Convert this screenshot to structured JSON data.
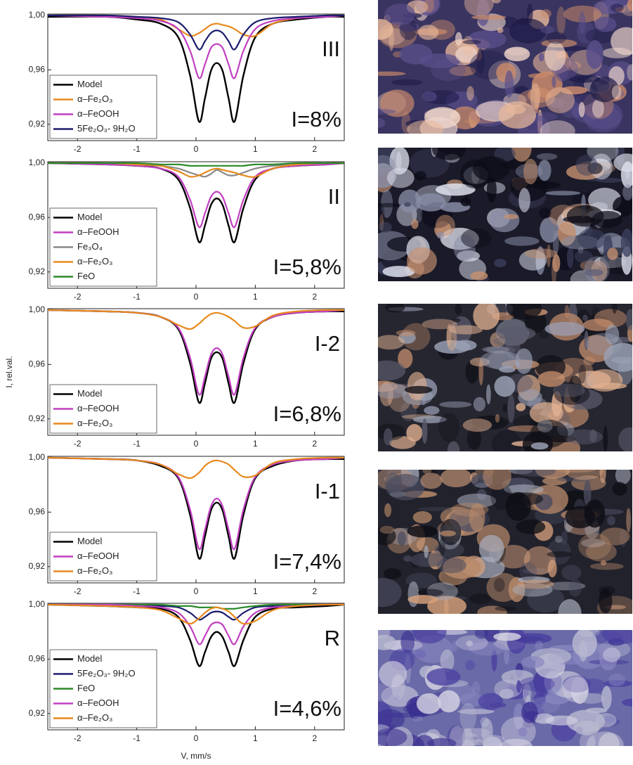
{
  "chart_data": [
    {
      "type": "line",
      "label": "III",
      "annotation": "I=8%",
      "xlim": [
        -2.5,
        2.5
      ],
      "ylim": [
        0.908,
        1.001
      ],
      "xticks": [
        -2,
        -1,
        0,
        1,
        2
      ],
      "yticks": [
        {
          "value": 0.92,
          "label": "0,92"
        },
        {
          "value": 0.96,
          "label": "0,96"
        },
        {
          "value": 1.0,
          "label": "1,00"
        }
      ],
      "legend": "lower left",
      "x": [
        -2.5,
        -1.5,
        -1,
        -0.6,
        -0.3,
        -0.1,
        0.05,
        0.15,
        0.25,
        0.35,
        0.45,
        0.55,
        0.65,
        0.8,
        1,
        1.3,
        1.7,
        2.2,
        2.5
      ],
      "series": [
        {
          "name": "Model",
          "color": "#000000",
          "values": [
            0.999,
            0.999,
            0.997,
            0.994,
            0.984,
            0.956,
            0.922,
            0.939,
            0.959,
            0.965,
            0.959,
            0.939,
            0.922,
            0.956,
            0.984,
            0.994,
            0.997,
            0.999,
            0.999
          ]
        },
        {
          "name": "α–Fe₂O₃",
          "color": "#e8891e",
          "values": [
            1,
            1,
            0.999,
            0.997,
            0.99,
            0.985,
            0.987,
            0.99,
            0.993,
            0.994,
            0.993,
            0.992,
            0.99,
            0.986,
            0.985,
            0.994,
            0.998,
            1,
            1
          ]
        },
        {
          "name": "α–FeOOH",
          "color": "#c13fc1",
          "values": [
            1,
            0.999,
            0.998,
            0.996,
            0.99,
            0.974,
            0.954,
            0.964,
            0.976,
            0.979,
            0.976,
            0.964,
            0.954,
            0.974,
            0.99,
            0.996,
            0.998,
            0.999,
            1
          ]
        },
        {
          "name": "5Fe₂O₃- 9H₂O",
          "color": "#1c1c6e",
          "values": [
            1,
            1,
            0.999,
            0.998,
            0.995,
            0.986,
            0.975,
            0.981,
            0.987,
            0.989,
            0.987,
            0.981,
            0.975,
            0.986,
            0.995,
            0.998,
            0.999,
            1,
            1
          ]
        }
      ]
    },
    {
      "type": "line",
      "label": "II",
      "annotation": "I=5,8%",
      "xlim": [
        -2.5,
        2.5
      ],
      "ylim": [
        0.908,
        1.001
      ],
      "xticks": [
        -2,
        -1,
        0,
        1,
        2
      ],
      "yticks": [
        {
          "value": 0.92,
          "label": "0,92"
        },
        {
          "value": 0.96,
          "label": "0,96"
        },
        {
          "value": 1.0,
          "label": "1,00"
        }
      ],
      "legend": "lower left",
      "x": [
        -2.5,
        -1.5,
        -1,
        -0.6,
        -0.3,
        -0.1,
        0.05,
        0.15,
        0.25,
        0.35,
        0.45,
        0.55,
        0.65,
        0.8,
        1,
        1.3,
        1.7,
        2.2,
        2.5
      ],
      "series": [
        {
          "name": "Model",
          "color": "#000000",
          "values": [
            1,
            0.999,
            0.998,
            0.996,
            0.988,
            0.967,
            0.942,
            0.954,
            0.969,
            0.974,
            0.969,
            0.954,
            0.942,
            0.967,
            0.988,
            0.996,
            0.998,
            0.999,
            1
          ]
        },
        {
          "name": "α–FeOOH",
          "color": "#c13fc1",
          "values": [
            1,
            0.999,
            0.998,
            0.996,
            0.99,
            0.973,
            0.953,
            0.963,
            0.975,
            0.979,
            0.975,
            0.963,
            0.953,
            0.973,
            0.99,
            0.996,
            0.998,
            0.999,
            1
          ]
        },
        {
          "name": "Fe₃O₄",
          "color": "#888888",
          "values": [
            1,
            1,
            0.999,
            0.998,
            0.996,
            0.993,
            0.991,
            0.99,
            0.992,
            0.995,
            0.993,
            0.991,
            0.991,
            0.993,
            0.996,
            0.998,
            0.999,
            1,
            1
          ]
        },
        {
          "name": "α–Fe₂O₃",
          "color": "#e8891e",
          "values": [
            1,
            1,
            0.999,
            0.998,
            0.994,
            0.99,
            0.991,
            0.993,
            0.995,
            0.996,
            0.995,
            0.994,
            0.993,
            0.991,
            0.99,
            0.996,
            0.999,
            1,
            1
          ]
        },
        {
          "name": "FeO",
          "color": "#2a8a2a",
          "values": [
            1,
            1,
            1,
            0.999,
            0.999,
            0.998,
            0.998,
            0.998,
            0.998,
            0.998,
            0.998,
            0.998,
            0.998,
            0.998,
            0.999,
            0.999,
            1,
            1,
            1
          ]
        }
      ]
    },
    {
      "type": "line",
      "label": "I-2",
      "annotation": "I=6,8%",
      "ylabel": "I, rel.val.",
      "xlim": [
        -2.5,
        2.5
      ],
      "ylim": [
        0.908,
        1.001
      ],
      "xticks": [
        -2,
        -1,
        0,
        1,
        2
      ],
      "yticks": [
        {
          "value": 0.92,
          "label": "0,92"
        },
        {
          "value": 0.96,
          "label": "0,96"
        },
        {
          "value": 1.0,
          "label": "1,00"
        }
      ],
      "legend": "lower left",
      "x": [
        -2.5,
        -1.5,
        -1,
        -0.6,
        -0.3,
        -0.1,
        0.05,
        0.15,
        0.25,
        0.35,
        0.45,
        0.55,
        0.65,
        0.8,
        1,
        1.3,
        1.7,
        2.2,
        2.5
      ],
      "series": [
        {
          "name": "Model",
          "color": "#000000",
          "values": [
            1,
            0.999,
            0.998,
            0.995,
            0.986,
            0.961,
            0.932,
            0.946,
            0.964,
            0.969,
            0.964,
            0.946,
            0.932,
            0.961,
            0.986,
            0.995,
            0.998,
            0.999,
            0.999
          ]
        },
        {
          "name": "α–FeOOH",
          "color": "#c13fc1",
          "values": [
            1,
            0.999,
            0.998,
            0.995,
            0.987,
            0.965,
            0.938,
            0.951,
            0.967,
            0.972,
            0.967,
            0.951,
            0.938,
            0.965,
            0.987,
            0.995,
            0.998,
            0.999,
            1
          ]
        },
        {
          "name": "α–Fe₂O₃",
          "color": "#e8891e",
          "values": [
            1,
            0.999,
            0.998,
            0.995,
            0.989,
            0.986,
            0.99,
            0.994,
            0.997,
            0.998,
            0.997,
            0.995,
            0.992,
            0.987,
            0.988,
            0.996,
            0.999,
            1,
            1
          ]
        }
      ]
    },
    {
      "type": "line",
      "label": "I-1",
      "annotation": "I=7,4%",
      "xlim": [
        -2.5,
        2.5
      ],
      "ylim": [
        0.908,
        1.001
      ],
      "xticks": [
        -2,
        -1,
        0,
        1,
        2
      ],
      "yticks": [
        {
          "value": 0.92,
          "label": "0,92"
        },
        {
          "value": 0.96,
          "label": "0,96"
        },
        {
          "value": 1.0,
          "label": "1,00"
        }
      ],
      "legend": "lower left",
      "x": [
        -2.5,
        -1.5,
        -1,
        -0.6,
        -0.3,
        -0.1,
        0.05,
        0.15,
        0.25,
        0.35,
        0.45,
        0.55,
        0.65,
        0.8,
        1,
        1.3,
        1.7,
        2.2,
        2.5
      ],
      "series": [
        {
          "name": "Model",
          "color": "#000000",
          "values": [
            1,
            0.999,
            0.998,
            0.994,
            0.985,
            0.958,
            0.926,
            0.942,
            0.961,
            0.967,
            0.961,
            0.942,
            0.926,
            0.958,
            0.985,
            0.994,
            0.998,
            0.999,
            0.999
          ]
        },
        {
          "name": "α–FeOOH",
          "color": "#c13fc1",
          "values": [
            1,
            0.999,
            0.998,
            0.995,
            0.986,
            0.962,
            0.933,
            0.947,
            0.964,
            0.97,
            0.964,
            0.947,
            0.933,
            0.962,
            0.986,
            0.995,
            0.998,
            0.999,
            1
          ]
        },
        {
          "name": "α–Fe₂O₃",
          "color": "#e8891e",
          "values": [
            1,
            0.999,
            0.998,
            0.995,
            0.988,
            0.985,
            0.989,
            0.994,
            0.997,
            0.998,
            0.997,
            0.995,
            0.991,
            0.986,
            0.987,
            0.996,
            0.999,
            1,
            1
          ]
        }
      ]
    },
    {
      "type": "line",
      "label": "R",
      "annotation": "I=4,6%",
      "xlabel": "V, mm/s",
      "xlim": [
        -2.5,
        2.5
      ],
      "ylim": [
        0.908,
        1.001
      ],
      "xticks": [
        -2,
        -1,
        0,
        1,
        2
      ],
      "yticks": [
        {
          "value": 0.92,
          "label": "0,92"
        },
        {
          "value": 0.96,
          "label": "0,96"
        },
        {
          "value": 1.0,
          "label": "1,00"
        }
      ],
      "legend": "lower left",
      "x": [
        -2.5,
        -1.5,
        -1,
        -0.6,
        -0.3,
        -0.1,
        0.05,
        0.15,
        0.25,
        0.35,
        0.45,
        0.55,
        0.65,
        0.8,
        1,
        1.3,
        1.7,
        2.2,
        2.5
      ],
      "series": [
        {
          "name": "Model",
          "color": "#000000",
          "values": [
            1,
            0.999,
            0.998,
            0.997,
            0.991,
            0.974,
            0.955,
            0.965,
            0.976,
            0.98,
            0.976,
            0.965,
            0.955,
            0.974,
            0.991,
            0.997,
            0.998,
            0.999,
            1
          ]
        },
        {
          "name": "5Fe₂O₃- 9H₂O",
          "color": "#1c1c6e",
          "values": [
            1,
            1,
            1,
            0.999,
            0.998,
            0.994,
            0.989,
            0.991,
            0.994,
            0.995,
            0.994,
            0.991,
            0.989,
            0.994,
            0.998,
            0.999,
            1,
            1,
            1
          ]
        },
        {
          "name": "FeO",
          "color": "#2a8a2a",
          "values": [
            1,
            1,
            1,
            1,
            0.999,
            0.999,
            0.998,
            0.998,
            0.998,
            0.998,
            0.997,
            0.997,
            0.997,
            0.998,
            0.999,
            1,
            1,
            1,
            1
          ]
        },
        {
          "name": "α–FeOOH",
          "color": "#c13fc1",
          "values": [
            1,
            1,
            0.999,
            0.998,
            0.994,
            0.984,
            0.971,
            0.977,
            0.985,
            0.987,
            0.985,
            0.977,
            0.971,
            0.984,
            0.994,
            0.998,
            0.999,
            1,
            1
          ]
        },
        {
          "name": "α–Fe₂O₃",
          "color": "#e8891e",
          "values": [
            1,
            0.999,
            0.998,
            0.996,
            0.99,
            0.986,
            0.99,
            0.994,
            0.997,
            0.998,
            0.997,
            0.995,
            0.991,
            0.986,
            0.988,
            0.996,
            0.999,
            1,
            1
          ]
        }
      ]
    }
  ]
}
